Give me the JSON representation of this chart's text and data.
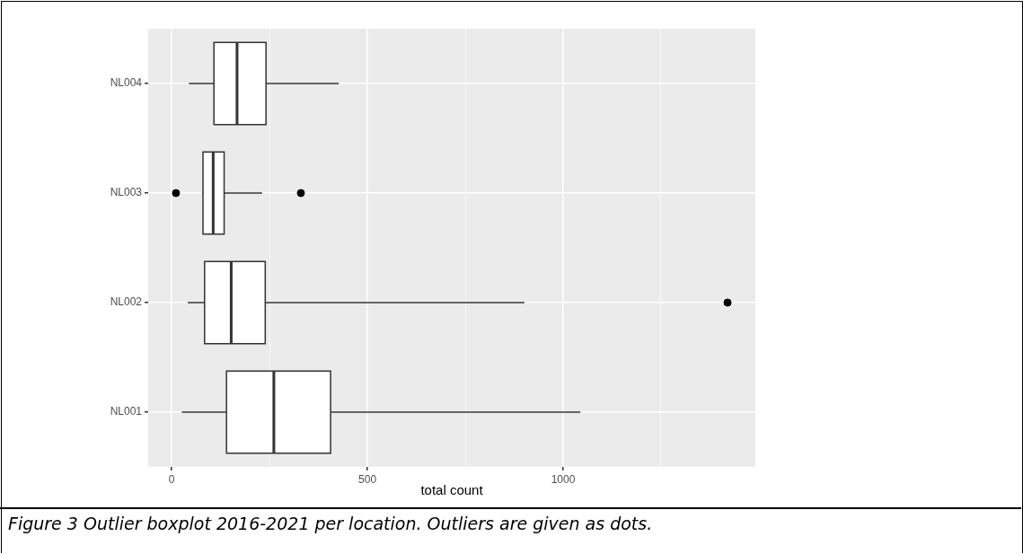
{
  "chart_data": {
    "type": "box",
    "orientation": "horizontal",
    "categories": [
      "NL004",
      "NL003",
      "NL002",
      "NL001"
    ],
    "boxes": [
      {
        "low": 44,
        "q1": 108,
        "median": 167,
        "q3": 241,
        "high": 427
      },
      {
        "low": 78,
        "q1": 80,
        "median": 106,
        "q3": 134,
        "high": 231,
        "outliers": [
          11,
          330
        ]
      },
      {
        "low": 41,
        "q1": 84,
        "median": 152,
        "q3": 239,
        "high": 901,
        "outliers": [
          1420
        ]
      },
      {
        "low": 26,
        "q1": 140,
        "median": 261,
        "q3": 406,
        "high": 1044
      }
    ],
    "xlabel": "total count",
    "xlim": [
      -60,
      1491
    ],
    "xticks": [
      0,
      {
        "value": 250,
        "label": null
      },
      500,
      {
        "value": 750,
        "label": null
      },
      1000,
      {
        "value": 1250,
        "label": null
      }
    ],
    "grid": true,
    "annotations": [
      "Figure 3 Outlier boxplot 2016-2021 per location. Outliers are given as dots."
    ]
  }
}
